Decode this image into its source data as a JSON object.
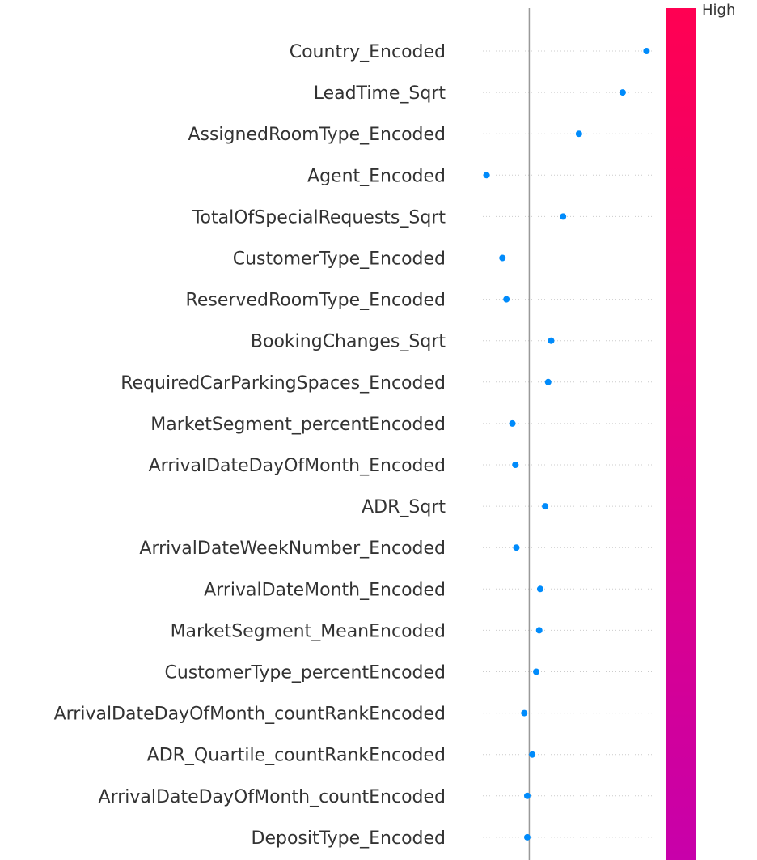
{
  "chart_data": {
    "type": "scatter",
    "title": "",
    "xlabel": "",
    "ylabel": "",
    "colorbar": {
      "high_label": "High",
      "color_top": "#ff0052",
      "color_bottom": "#c800aa"
    },
    "point_color": "#008bfb",
    "baseline_x": 0.0,
    "xlim": [
      -0.5,
      1.25
    ],
    "features": [
      "Country_Encoded",
      "LeadTime_Sqrt",
      "AssignedRoomType_Encoded",
      "Agent_Encoded",
      "TotalOfSpecialRequests_Sqrt",
      "CustomerType_Encoded",
      "ReservedRoomType_Encoded",
      "BookingChanges_Sqrt",
      "RequiredCarParkingSpaces_Encoded",
      "MarketSegment_percentEncoded",
      "ArrivalDateDayOfMonth_Encoded",
      "ADR_Sqrt",
      "ArrivalDateWeekNumber_Encoded",
      "ArrivalDateMonth_Encoded",
      "MarketSegment_MeanEncoded",
      "CustomerType_percentEncoded",
      "ArrivalDateDayOfMonth_countRankEncoded",
      "ADR_Quartile_countRankEncoded",
      "ArrivalDateDayOfMonth_countEncoded",
      "DepositType_Encoded"
    ],
    "values": [
      1.18,
      0.94,
      0.5,
      -0.43,
      0.34,
      -0.27,
      -0.23,
      0.22,
      0.19,
      -0.17,
      -0.14,
      0.16,
      -0.13,
      0.11,
      0.1,
      0.07,
      -0.05,
      0.03,
      -0.02,
      -0.02
    ]
  }
}
